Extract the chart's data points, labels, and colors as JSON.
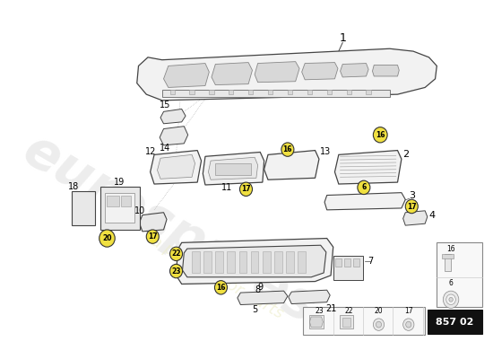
{
  "bg_color": "#ffffff",
  "watermark_text": "eurospares",
  "watermark_subtext": "a passion for parts",
  "diagram_number": "857 02",
  "line_color": "#444444",
  "light_fill": "#f2f2f2",
  "mid_fill": "#e8e8e8",
  "dark_fill": "#d8d8d8",
  "yellow_circle": "#f0e040"
}
